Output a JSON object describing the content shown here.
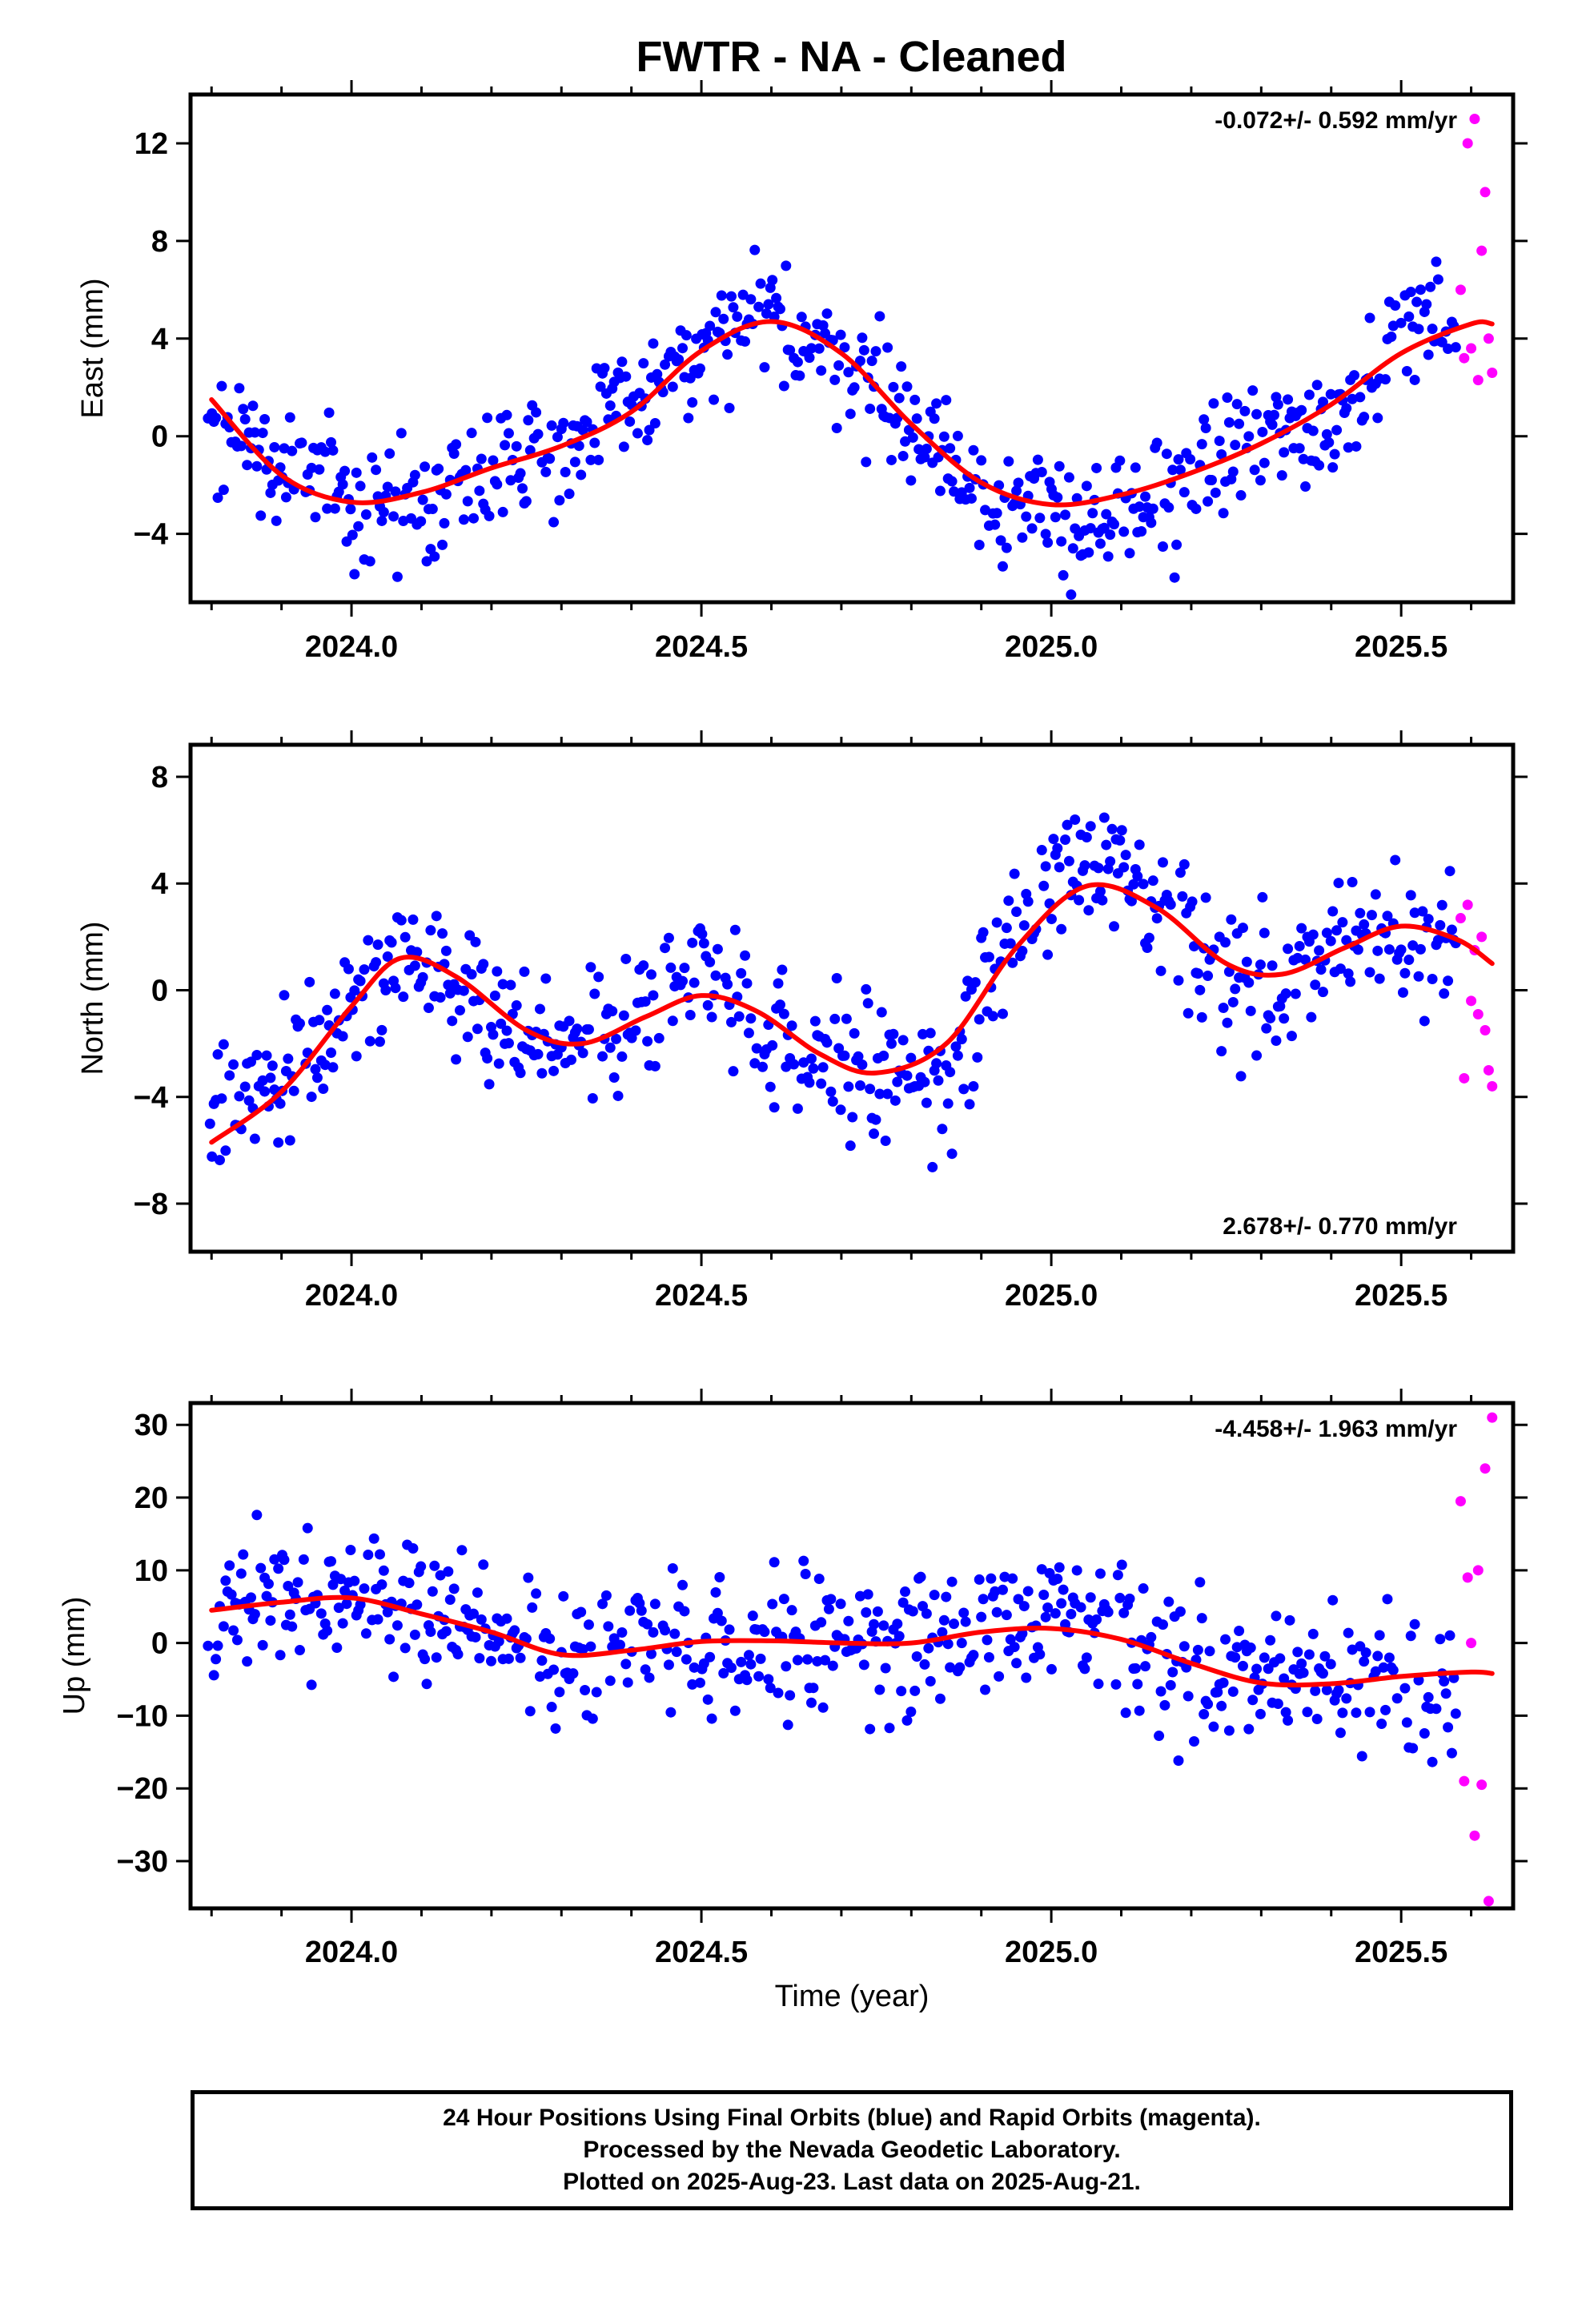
{
  "title": "FWTR  - NA - Cleaned",
  "colors": {
    "final": "#0000ff",
    "rapid": "#ff00ff",
    "fit": "#ff0000"
  },
  "footer": {
    "line1": "24 Hour Positions Using Final Orbits (blue) and Rapid Orbits (magenta).",
    "line2": "Processed by the Nevada Geodetic Laboratory.",
    "line3": "Plotted on 2025-Aug-23. Last data on 2025-Aug-21."
  },
  "chart_data": [
    {
      "type": "scatter",
      "ylabel": "East (mm)",
      "xlabel": "",
      "rate": "-0.072+/- 0.592 mm/yr",
      "rate_position": "top-right",
      "xlim": [
        2023.77,
        2025.66
      ],
      "ylim": [
        -6.8,
        14.0
      ],
      "xticks": [
        2024.0,
        2024.5,
        2025.0,
        2025.5
      ],
      "xticklabels": [
        "2024.0",
        "2024.5",
        "2025.0",
        "2025.5"
      ],
      "yticks": [
        -4,
        0,
        4,
        8,
        12
      ],
      "yticklabels": [
        "−4",
        "0",
        "4",
        "8",
        "12"
      ],
      "fit": {
        "x": [
          2023.8,
          2023.9,
          2024.0,
          2024.1,
          2024.2,
          2024.3,
          2024.4,
          2024.5,
          2024.6,
          2024.7,
          2024.8,
          2024.9,
          2025.0,
          2025.1,
          2025.2,
          2025.3,
          2025.4,
          2025.5,
          2025.6,
          2025.63
        ],
        "y": [
          1.5,
          -1.6,
          -2.7,
          -2.3,
          -1.3,
          -0.4,
          1.0,
          3.5,
          4.7,
          3.4,
          0.5,
          -1.9,
          -2.8,
          -2.4,
          -1.5,
          -0.3,
          1.3,
          3.4,
          4.6,
          4.6
        ]
      },
      "anchors": {
        "x": [
          2023.8,
          2023.9,
          2024.0,
          2024.1,
          2024.2,
          2024.3,
          2024.4,
          2024.5,
          2024.6,
          2024.7,
          2024.8,
          2024.9,
          2025.0,
          2025.1,
          2025.2,
          2025.3,
          2025.4,
          2025.5,
          2025.6
        ],
        "y": [
          1.0,
          -1.3,
          -2.5,
          -2.8,
          -0.8,
          -0.4,
          1.4,
          3.5,
          4.8,
          3.3,
          0.6,
          -2.2,
          -3.2,
          -3.6,
          -1.6,
          -0.1,
          0.7,
          4.4,
          5.4
        ]
      },
      "scatter": 1.25,
      "rapid": {
        "x": [
          2025.585,
          2025.59,
          2025.595,
          2025.6,
          2025.605,
          2025.61,
          2025.615,
          2025.62,
          2025.625,
          2025.63
        ],
        "y": [
          6.0,
          3.2,
          12.0,
          3.6,
          13.0,
          2.3,
          7.6,
          10.0,
          4.0,
          2.6
        ]
      }
    },
    {
      "type": "scatter",
      "ylabel": "North (mm)",
      "xlabel": "",
      "rate": "2.678+/- 0.770 mm/yr",
      "rate_position": "bottom-right",
      "xlim": [
        2023.77,
        2025.66
      ],
      "ylim": [
        -9.8,
        9.2
      ],
      "xticks": [
        2024.0,
        2024.5,
        2025.0,
        2025.5
      ],
      "xticklabels": [
        "2024.0",
        "2024.5",
        "2025.0",
        "2025.5"
      ],
      "yticks": [
        -8,
        -4,
        0,
        4,
        8
      ],
      "yticklabels": [
        "−8",
        "−4",
        "0",
        "4",
        "8"
      ],
      "fit": {
        "x": [
          2023.8,
          2023.9,
          2024.0,
          2024.07,
          2024.15,
          2024.25,
          2024.33,
          2024.42,
          2024.5,
          2024.58,
          2024.67,
          2024.75,
          2024.85,
          2024.95,
          2025.05,
          2025.15,
          2025.25,
          2025.33,
          2025.42,
          2025.5,
          2025.58,
          2025.63
        ],
        "y": [
          -5.7,
          -3.8,
          -0.6,
          1.2,
          0.5,
          -1.5,
          -2.0,
          -1.0,
          -0.2,
          -0.8,
          -2.4,
          -3.1,
          -2.0,
          1.6,
          3.9,
          3.1,
          1.0,
          0.6,
          1.6,
          2.4,
          1.9,
          1.0
        ]
      },
      "anchors": {
        "x": [
          2023.8,
          2023.9,
          2024.0,
          2024.07,
          2024.15,
          2024.25,
          2024.33,
          2024.42,
          2024.5,
          2024.58,
          2024.67,
          2024.75,
          2024.85,
          2024.95,
          2025.05,
          2025.15,
          2025.25,
          2025.33,
          2025.42,
          2025.5,
          2025.58
        ],
        "y": [
          -4.5,
          -3.2,
          -0.5,
          1.5,
          0.2,
          -2.0,
          -1.6,
          -0.5,
          0.3,
          -1.2,
          -2.0,
          -3.0,
          -3.5,
          2.5,
          5.0,
          2.6,
          0.6,
          0.2,
          1.8,
          1.8,
          1.4
        ]
      },
      "scatter": 1.3,
      "rapid": {
        "x": [
          2025.585,
          2025.59,
          2025.595,
          2025.6,
          2025.605,
          2025.61,
          2025.615,
          2025.62,
          2025.625,
          2025.63
        ],
        "y": [
          2.7,
          -3.3,
          3.2,
          -0.4,
          1.5,
          -0.9,
          2.0,
          -1.5,
          -3.0,
          -3.6
        ]
      }
    },
    {
      "type": "scatter",
      "ylabel": "Up (mm)",
      "xlabel": "Time (year)",
      "rate": "-4.458+/- 1.963 mm/yr",
      "rate_position": "top-right",
      "xlim": [
        2023.77,
        2025.66
      ],
      "ylim": [
        -36.5,
        33.0
      ],
      "xticks": [
        2024.0,
        2024.5,
        2025.0,
        2025.5
      ],
      "xticklabels": [
        "2024.0",
        "2024.5",
        "2025.0",
        "2025.5"
      ],
      "yticks": [
        -30,
        -20,
        -10,
        0,
        10,
        20,
        30
      ],
      "yticklabels": [
        "−30",
        "−20",
        "−10",
        "0",
        "10",
        "20",
        "30"
      ],
      "fit": {
        "x": [
          2023.8,
          2023.9,
          2024.0,
          2024.1,
          2024.2,
          2024.3,
          2024.4,
          2024.5,
          2024.6,
          2024.7,
          2024.8,
          2024.9,
          2025.0,
          2025.1,
          2025.2,
          2025.3,
          2025.4,
          2025.5,
          2025.6,
          2025.63
        ],
        "y": [
          4.5,
          5.6,
          6.2,
          4.0,
          1.5,
          -1.6,
          -1.0,
          0.2,
          0.3,
          0.0,
          0.0,
          1.5,
          2.0,
          0.5,
          -2.8,
          -5.5,
          -5.6,
          -4.6,
          -4.0,
          -4.2
        ]
      },
      "anchors": {
        "x": [
          2023.8,
          2023.9,
          2024.0,
          2024.1,
          2024.2,
          2024.3,
          2024.4,
          2024.5,
          2024.6,
          2024.7,
          2024.8,
          2024.9,
          2025.0,
          2025.1,
          2025.2,
          2025.3,
          2025.4,
          2025.5,
          2025.6
        ],
        "y": [
          5.0,
          6.0,
          7.5,
          4.5,
          2.0,
          -1.0,
          -1.5,
          0.5,
          1.0,
          0.5,
          -0.5,
          2.0,
          2.5,
          0.0,
          -3.0,
          -5.0,
          -5.5,
          -5.0,
          -8.0
        ]
      },
      "scatter": 4.8,
      "rapid": {
        "x": [
          2025.585,
          2025.59,
          2025.595,
          2025.6,
          2025.605,
          2025.61,
          2025.615,
          2025.62,
          2025.625,
          2025.63
        ],
        "y": [
          19.5,
          -19.0,
          9.0,
          0.0,
          -26.5,
          10.0,
          -19.5,
          24.0,
          -35.5,
          31.0
        ]
      }
    }
  ]
}
